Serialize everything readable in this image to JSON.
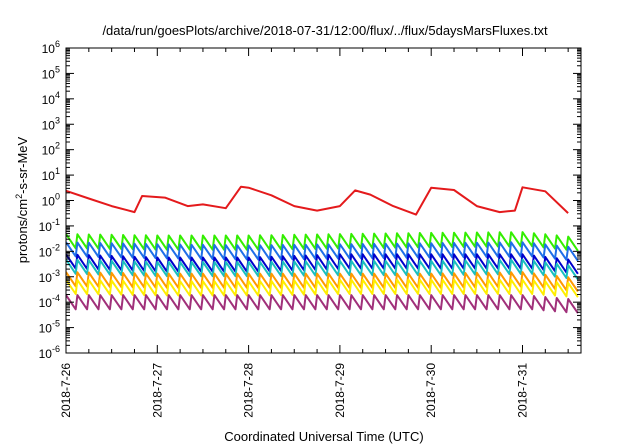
{
  "chart_data": {
    "type": "line",
    "title": "/data/run/goesPlots/archive/2018-07-31/12:00/flux/../flux/5daysMarsFluxes.txt",
    "xlabel": "Coordinated Universal Time (UTC)",
    "ylabel": "protons/cm²-s-sr-MeV",
    "y_scale": "log",
    "ylim": [
      1e-06,
      1000000.0
    ],
    "xlim": [
      "2018-07-26",
      "2018-07-31 12:00"
    ],
    "x_ticks": [
      "2018-7-26",
      "2018-7-27",
      "2018-7-28",
      "2018-7-29",
      "2018-7-30",
      "2018-7-31"
    ],
    "y_ticks": [
      {
        "base": "10",
        "exp": "-6"
      },
      {
        "base": "10",
        "exp": "-5"
      },
      {
        "base": "10",
        "exp": "-4"
      },
      {
        "base": "10",
        "exp": "-3"
      },
      {
        "base": "10",
        "exp": "-2"
      },
      {
        "base": "10",
        "exp": "-1"
      },
      {
        "base": "10",
        "exp": "0"
      },
      {
        "base": "10",
        "exp": "1"
      },
      {
        "base": "10",
        "exp": "2"
      },
      {
        "base": "10",
        "exp": "3"
      },
      {
        "base": "10",
        "exp": "4"
      },
      {
        "base": "10",
        "exp": "5"
      },
      {
        "base": "10",
        "exp": "6"
      }
    ],
    "grid": false,
    "legend": "none",
    "series": [
      {
        "color": "#e41a1c",
        "x": [
          "2018-07-26 00:00",
          "2018-07-26 06:00",
          "2018-07-26 12:00",
          "2018-07-26 18:00",
          "2018-07-26 20:00",
          "2018-07-27 02:00",
          "2018-07-27 08:00",
          "2018-07-27 12:00",
          "2018-07-27 18:00",
          "2018-07-27 22:00",
          "2018-07-28 00:00",
          "2018-07-28 06:00",
          "2018-07-28 12:00",
          "2018-07-28 18:00",
          "2018-07-29 00:00",
          "2018-07-29 04:00",
          "2018-07-29 08:00",
          "2018-07-29 14:00",
          "2018-07-29 20:00",
          "2018-07-30 00:00",
          "2018-07-30 06:00",
          "2018-07-30 12:00",
          "2018-07-30 18:00",
          "2018-07-30 22:00",
          "2018-07-31 00:00",
          "2018-07-31 06:00",
          "2018-07-31 12:00"
        ],
        "values": [
          2.4,
          1.2,
          0.6,
          0.35,
          1.5,
          1.3,
          0.6,
          0.7,
          0.5,
          3.5,
          3.2,
          1.6,
          0.6,
          0.4,
          0.6,
          2.5,
          1.7,
          0.6,
          0.28,
          3.2,
          2.6,
          0.6,
          0.35,
          0.4,
          3.3,
          2.3,
          0.32
        ]
      },
      {
        "color": "#33ee00",
        "x": [
          "2018-07-26 00:00",
          "2018-07-27 00:00",
          "2018-07-28 00:00",
          "2018-07-29 00:00",
          "2018-07-30 00:00",
          "2018-07-31 00:00",
          "2018-07-31 12:00"
        ],
        "values": [
          0.025,
          0.022,
          0.022,
          0.025,
          0.028,
          0.03,
          0.02
        ]
      },
      {
        "color": "#1f6fe8",
        "x": [
          "2018-07-26 00:00",
          "2018-07-27 00:00",
          "2018-07-28 00:00",
          "2018-07-29 00:00",
          "2018-07-30 00:00",
          "2018-07-31 00:00",
          "2018-07-31 12:00"
        ],
        "values": [
          0.012,
          0.01,
          0.009,
          0.01,
          0.011,
          0.012,
          0.008
        ]
      },
      {
        "color": "#0000cc",
        "x": [
          "2018-07-26 00:00",
          "2018-07-27 00:00",
          "2018-07-28 00:00",
          "2018-07-29 00:00",
          "2018-07-30 00:00",
          "2018-07-31 00:00",
          "2018-07-31 12:00"
        ],
        "values": [
          0.004,
          0.003,
          0.003,
          0.004,
          0.004,
          0.004,
          0.0025
        ]
      },
      {
        "color": "#1bbfbf",
        "x": [
          "2018-07-26 00:00",
          "2018-07-27 00:00",
          "2018-07-28 00:00",
          "2018-07-29 00:00",
          "2018-07-30 00:00",
          "2018-07-31 00:00",
          "2018-07-31 12:00"
        ],
        "values": [
          0.0025,
          0.002,
          0.002,
          0.0022,
          0.0022,
          0.0025,
          0.0015
        ]
      },
      {
        "color": "#ff9900",
        "x": [
          "2018-07-26 00:00",
          "2018-07-27 00:00",
          "2018-07-28 00:00",
          "2018-07-29 00:00",
          "2018-07-30 00:00",
          "2018-07-31 00:00",
          "2018-07-31 12:00"
        ],
        "values": [
          0.0008,
          0.0007,
          0.0007,
          0.0007,
          0.0007,
          0.0008,
          0.0005
        ]
      },
      {
        "color": "#ffee00",
        "x": [
          "2018-07-26 00:00",
          "2018-07-27 00:00",
          "2018-07-28 00:00",
          "2018-07-29 00:00",
          "2018-07-30 00:00",
          "2018-07-31 00:00",
          "2018-07-31 12:00"
        ],
        "values": [
          0.0004,
          0.00035,
          0.00035,
          0.0004,
          0.0004,
          0.0004,
          0.0003
        ]
      },
      {
        "color": "#a0307a",
        "x": [
          "2018-07-26 00:00",
          "2018-07-27 00:00",
          "2018-07-28 00:00",
          "2018-07-29 00:00",
          "2018-07-30 00:00",
          "2018-07-31 00:00",
          "2018-07-31 12:00"
        ],
        "values": [
          0.0001,
          0.0001,
          0.0001,
          0.0001,
          0.0001,
          0.0001,
          7e-05
        ]
      }
    ]
  }
}
